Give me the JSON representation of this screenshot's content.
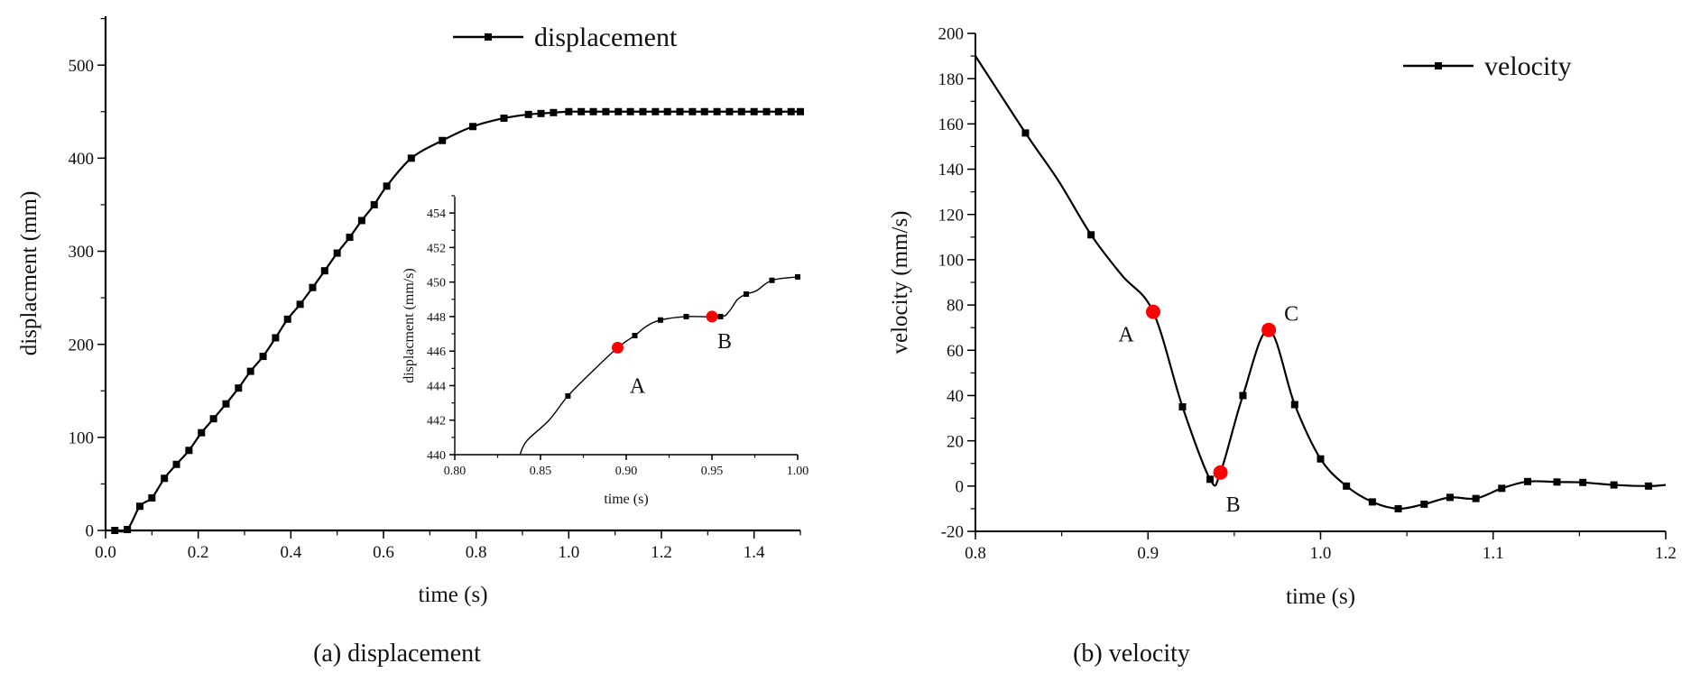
{
  "chart_data": [
    {
      "id": "a",
      "type": "line",
      "caption": "(a) displacement",
      "xlabel": "time (s)",
      "ylabel": "displacment (mm)",
      "xlim": [
        0,
        1.5
      ],
      "ylim": [
        0,
        550
      ],
      "xticks": [
        0.0,
        0.2,
        0.4,
        0.6,
        0.8,
        1.0,
        1.2,
        1.4
      ],
      "xtick_labels": [
        "0.0",
        "0.2",
        "0.4",
        "0.6",
        "0.8",
        "1.0",
        "1.2",
        "1.4"
      ],
      "yticks": [
        0,
        100,
        200,
        300,
        400,
        500
      ],
      "ytick_labels": [
        "0",
        "100",
        "200",
        "300",
        "400",
        "500"
      ],
      "legend": {
        "label": "displacement",
        "position": "top-right"
      },
      "series": [
        {
          "name": "displacement",
          "x": [
            0.02,
            0.047,
            0.074,
            0.1,
            0.127,
            0.153,
            0.18,
            0.207,
            0.233,
            0.26,
            0.287,
            0.313,
            0.34,
            0.367,
            0.393,
            0.42,
            0.447,
            0.473,
            0.5,
            0.527,
            0.553,
            0.58,
            0.607,
            0.66,
            0.727,
            0.793,
            0.86,
            0.913,
            0.94,
            0.967,
            1.0,
            1.027,
            1.053,
            1.08,
            1.107,
            1.133,
            1.16,
            1.187,
            1.213,
            1.24,
            1.267,
            1.293,
            1.32,
            1.347,
            1.373,
            1.4,
            1.427,
            1.453,
            1.48,
            1.5
          ],
          "y": [
            0,
            1,
            26,
            35,
            56,
            71,
            86,
            105,
            120,
            136,
            153,
            171,
            187,
            207,
            227,
            243,
            261,
            279,
            298,
            315,
            333,
            350,
            370,
            400,
            419,
            434,
            443,
            447,
            448,
            449,
            450,
            450,
            450,
            450,
            450,
            450,
            450,
            450,
            450,
            450,
            450,
            450,
            450,
            450,
            450,
            450,
            450,
            450,
            450,
            450
          ]
        }
      ],
      "inset": {
        "xlabel": "time (s)",
        "ylabel": "displacment (mm/s)",
        "xlim": [
          0.8,
          1.0
        ],
        "ylim": [
          440,
          455
        ],
        "xticks": [
          0.8,
          0.85,
          0.9,
          0.95,
          1.0
        ],
        "xtick_labels": [
          "0.80",
          "0.85",
          "0.90",
          "0.95",
          "1.00"
        ],
        "yticks": [
          440,
          442,
          444,
          446,
          448,
          450,
          452,
          454
        ],
        "ytick_labels": [
          "440",
          "442",
          "444",
          "446",
          "448",
          "450",
          "452",
          "454"
        ],
        "series": [
          {
            "name": "displacement",
            "x": [
              0.838,
              0.842,
              0.855,
              0.866,
              0.88,
              0.895,
              0.905,
              0.912,
              0.92,
              0.935,
              0.955,
              0.96,
              0.965,
              0.97,
              0.976,
              0.985,
              1.0
            ],
            "y": [
              440,
              440.8,
              442,
              443.4,
              444.8,
              446.2,
              446.9,
              447.45,
              447.8,
              448,
              448,
              448.3,
              449,
              449.3,
              449.5,
              450.1,
              450.3
            ],
            "markers": [
              0.866,
              0.905,
              0.92,
              0.935,
              0.955,
              0.97,
              0.985,
              1.0
            ]
          }
        ],
        "points": [
          {
            "label": "A",
            "x": 0.895,
            "y": 446.2
          },
          {
            "label": "B",
            "x": 0.95,
            "y": 448
          }
        ]
      }
    },
    {
      "id": "b",
      "type": "line",
      "caption": "(b) velocity",
      "xlabel": "time (s)",
      "ylabel": "velocity (mm/s)",
      "xlim": [
        0.8,
        1.2
      ],
      "ylim": [
        -20,
        200
      ],
      "xticks": [
        0.8,
        0.9,
        1.0,
        1.1,
        1.2
      ],
      "xtick_labels": [
        "0.8",
        "0.9",
        "1.0",
        "1.1",
        "1.2"
      ],
      "yticks": [
        -20,
        0,
        20,
        40,
        60,
        80,
        100,
        120,
        140,
        160,
        180,
        200
      ],
      "ytick_labels": [
        "-20",
        "0",
        "20",
        "40",
        "60",
        "80",
        "100",
        "120",
        "140",
        "160",
        "180",
        "200"
      ],
      "legend": {
        "label": "velocity",
        "position": "top-right"
      },
      "series": [
        {
          "name": "velocity",
          "x": [
            0.8,
            0.829,
            0.848,
            0.867,
            0.885,
            0.903,
            0.92,
            0.936,
            0.942,
            0.955,
            0.97,
            0.985,
            1.0,
            1.015,
            1.03,
            1.045,
            1.06,
            1.075,
            1.09,
            1.105,
            1.12,
            1.137,
            1.152,
            1.17,
            1.19,
            1.2
          ],
          "y": [
            190,
            156,
            135,
            111,
            93,
            77,
            35,
            3,
            6,
            40,
            69,
            36,
            12,
            0,
            -7,
            -10,
            -8,
            -5,
            -5.5,
            -1,
            2,
            1.8,
            1.6,
            0.5,
            0,
            0.5
          ],
          "markers": [
            0.829,
            0.867,
            0.92,
            0.936,
            0.955,
            0.985,
            1.0,
            1.015,
            1.03,
            1.045,
            1.06,
            1.075,
            1.09,
            1.105,
            1.12,
            1.137,
            1.152,
            1.17,
            1.19
          ]
        }
      ],
      "points": [
        {
          "label": "A",
          "x": 0.903,
          "y": 77
        },
        {
          "label": "B",
          "x": 0.942,
          "y": 6
        },
        {
          "label": "C",
          "x": 0.97,
          "y": 69
        }
      ]
    }
  ],
  "colors": {
    "line": "#000000",
    "highlight": "#ff0000"
  }
}
